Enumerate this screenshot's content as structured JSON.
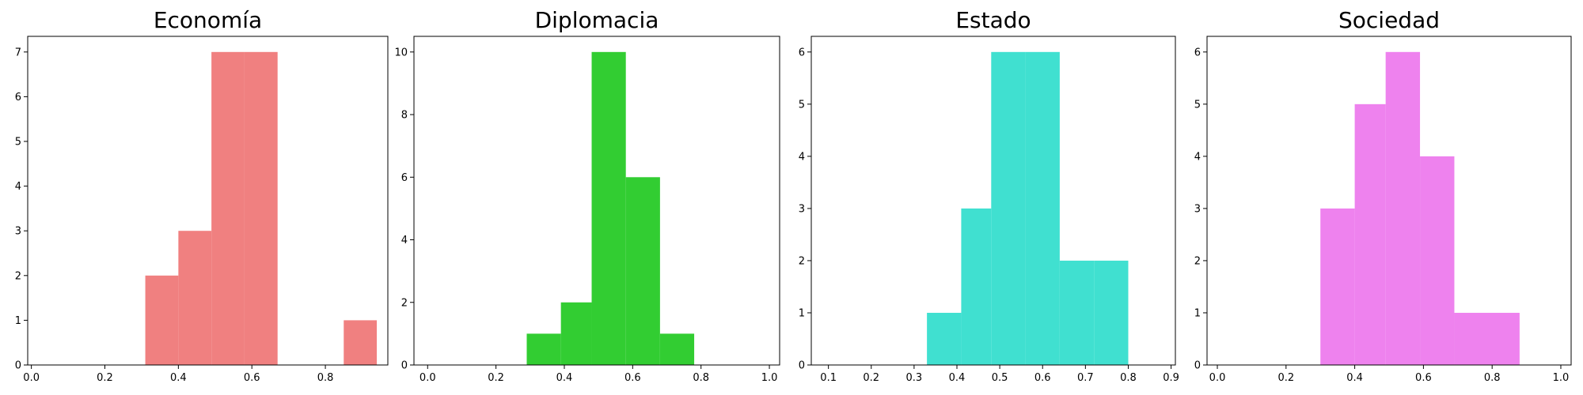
{
  "chart_data": [
    {
      "type": "bar",
      "title": "Economía",
      "color": "#f08080",
      "xlim": [
        -0.01,
        0.97
      ],
      "ylim": [
        0,
        7.35
      ],
      "xticks": [
        0.0,
        0.2,
        0.4,
        0.6,
        0.8
      ],
      "xtick_labels": [
        "0.0",
        "0.2",
        "0.4",
        "0.6",
        "0.8"
      ],
      "yticks": [
        0,
        1,
        2,
        3,
        4,
        5,
        6,
        7
      ],
      "ytick_labels": [
        "0",
        "1",
        "2",
        "3",
        "4",
        "5",
        "6",
        "7"
      ],
      "bins": [
        {
          "x0": 0.31,
          "x1": 0.4,
          "count": 2
        },
        {
          "x0": 0.4,
          "x1": 0.49,
          "count": 3
        },
        {
          "x0": 0.49,
          "x1": 0.58,
          "count": 7
        },
        {
          "x0": 0.58,
          "x1": 0.67,
          "count": 7
        },
        {
          "x0": 0.67,
          "x1": 0.76,
          "count": 0
        },
        {
          "x0": 0.76,
          "x1": 0.85,
          "count": 0
        },
        {
          "x0": 0.85,
          "x1": 0.94,
          "count": 1
        }
      ]
    },
    {
      "type": "bar",
      "title": "Diplomacia",
      "color": "#32cd32",
      "xlim": [
        -0.04,
        1.03
      ],
      "ylim": [
        0,
        10.5
      ],
      "xticks": [
        0.0,
        0.2,
        0.4,
        0.6,
        0.8,
        1.0
      ],
      "xtick_labels": [
        "0.0",
        "0.2",
        "0.4",
        "0.6",
        "0.8",
        "1.0"
      ],
      "yticks": [
        0,
        2,
        4,
        6,
        8,
        10
      ],
      "ytick_labels": [
        "0",
        "2",
        "4",
        "6",
        "8",
        "10"
      ],
      "bins": [
        {
          "x0": 0.29,
          "x1": 0.39,
          "count": 1
        },
        {
          "x0": 0.39,
          "x1": 0.48,
          "count": 2
        },
        {
          "x0": 0.48,
          "x1": 0.58,
          "count": 10
        },
        {
          "x0": 0.58,
          "x1": 0.68,
          "count": 6
        },
        {
          "x0": 0.68,
          "x1": 0.78,
          "count": 1
        }
      ]
    },
    {
      "type": "bar",
      "title": "Estado",
      "color": "#40e0d0",
      "xlim": [
        0.06,
        0.91
      ],
      "ylim": [
        0,
        6.3
      ],
      "xticks": [
        0.1,
        0.2,
        0.3,
        0.4,
        0.5,
        0.6,
        0.7,
        0.8,
        0.9
      ],
      "xtick_labels": [
        "0.1",
        "0.2",
        "0.3",
        "0.4",
        "0.5",
        "0.6",
        "0.7",
        "0.8",
        "0.9"
      ],
      "yticks": [
        0,
        1,
        2,
        3,
        4,
        5,
        6
      ],
      "ytick_labels": [
        "0",
        "1",
        "2",
        "3",
        "4",
        "5",
        "6"
      ],
      "bins": [
        {
          "x0": 0.33,
          "x1": 0.41,
          "count": 1
        },
        {
          "x0": 0.41,
          "x1": 0.48,
          "count": 3
        },
        {
          "x0": 0.48,
          "x1": 0.56,
          "count": 6
        },
        {
          "x0": 0.56,
          "x1": 0.64,
          "count": 6
        },
        {
          "x0": 0.64,
          "x1": 0.72,
          "count": 2
        },
        {
          "x0": 0.72,
          "x1": 0.8,
          "count": 2
        }
      ]
    },
    {
      "type": "bar",
      "title": "Sociedad",
      "color": "#ee82ee",
      "xlim": [
        -0.03,
        1.03
      ],
      "ylim": [
        0,
        6.3
      ],
      "xticks": [
        0.0,
        0.2,
        0.4,
        0.6,
        0.8,
        1.0
      ],
      "xtick_labels": [
        "0.0",
        "0.2",
        "0.4",
        "0.6",
        "0.8",
        "1.0"
      ],
      "yticks": [
        0,
        1,
        2,
        3,
        4,
        5,
        6
      ],
      "ytick_labels": [
        "0",
        "1",
        "2",
        "3",
        "4",
        "5",
        "6"
      ],
      "bins": [
        {
          "x0": 0.3,
          "x1": 0.4,
          "count": 3
        },
        {
          "x0": 0.4,
          "x1": 0.49,
          "count": 5
        },
        {
          "x0": 0.49,
          "x1": 0.59,
          "count": 6
        },
        {
          "x0": 0.59,
          "x1": 0.69,
          "count": 4
        },
        {
          "x0": 0.69,
          "x1": 0.78,
          "count": 1
        },
        {
          "x0": 0.78,
          "x1": 0.88,
          "count": 1
        }
      ]
    }
  ]
}
